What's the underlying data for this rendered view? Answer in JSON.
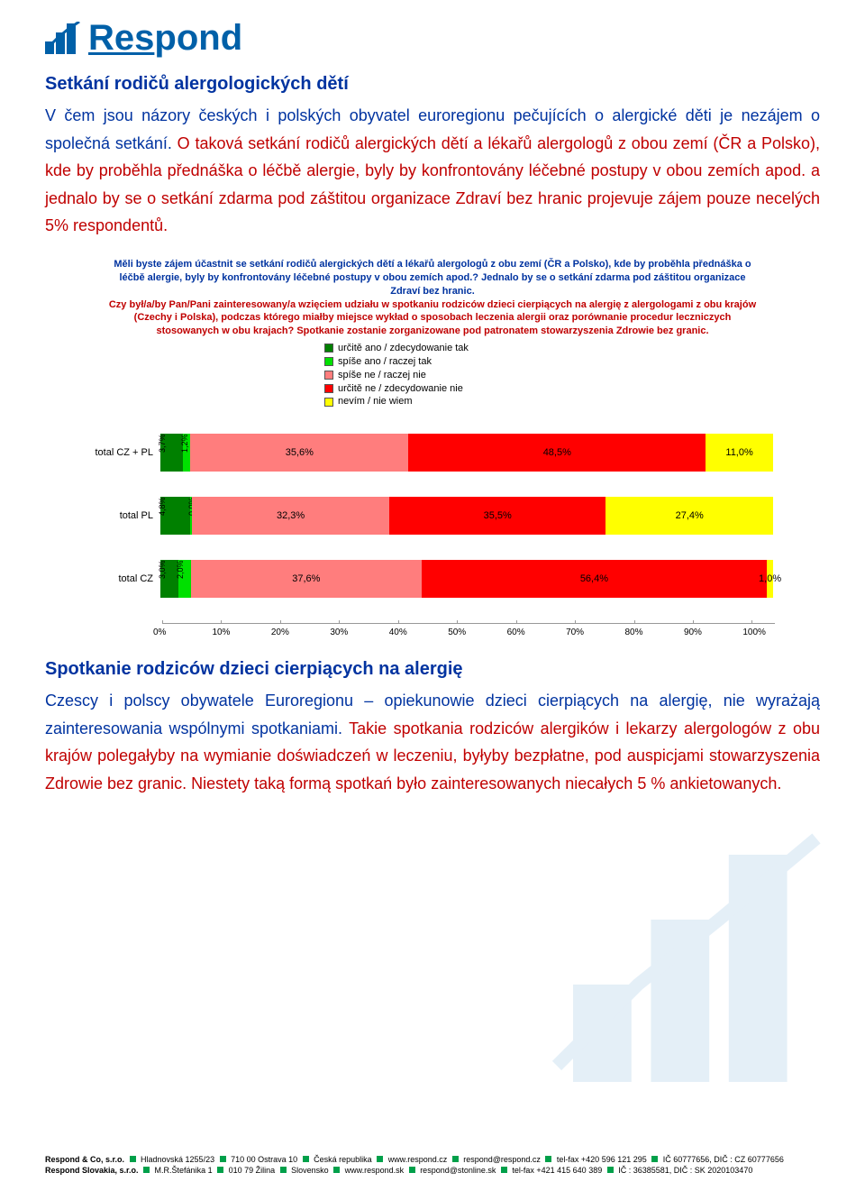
{
  "logo": {
    "text": "Respond",
    "icon_name": "logo-bar-icon",
    "brand_color": "#0060a8"
  },
  "section_cz": {
    "title": "Setkání rodičů alergologických dětí",
    "paragraph_blue": "V čem jsou názory českých i polských obyvatel euroregionu pečujících o alergické děti je nezájem o společná setkání. ",
    "paragraph_red": "O taková setkání rodičů alergických dětí a lékařů alergologů z obou zemí (ČR a Polsko), kde by proběhla přednáška o léčbě alergie, byly by konfrontovány léčebné postupy v obou zemích apod. a jednalo by se o setkání zdarma pod záštitou organizace Zdraví bez hranic projevuje zájem pouze necelých 5% respondentů."
  },
  "chart": {
    "title_blue": "Měli byste zájem účastnit se setkání rodičů alergických dětí a lékařů alergologů z obu zemí (ČR a Polsko), kde by proběhla přednáška o léčbě alergie, byly by konfrontovány léčebné postupy v obou zemích apod.? Jednalo by se o setkání zdarma pod záštitou organizace Zdraví bez hranic.",
    "title_red": "Czy był/a/by Pan/Pani zainteresowany/a wzięciem udziału w spotkaniu rodziców dzieci cierpiących na alergię z alergologami z obu krajów (Czechy i Polska), podczas którego miałby miejsce wykład o sposobach leczenia alergii oraz porównanie procedur leczniczych stosowanych w obu krajach? Spotkanie zostanie zorganizowane pod patronatem stowarzyszenia Zdrowie bez granic.",
    "legend": [
      {
        "color": "#008000",
        "label": "určitě ano / zdecydowanie tak"
      },
      {
        "color": "#00e000",
        "label": "spíše ano / raczej tak"
      },
      {
        "color": "#ff7d7d",
        "label": "spíše ne / raczej nie"
      },
      {
        "color": "#ff0000",
        "label": "určitě ne / zdecydowanie nie"
      },
      {
        "color": "#ffff00",
        "label": "nevím / nie wiem"
      }
    ],
    "rows": [
      {
        "label": "total CZ + PL",
        "segments": [
          {
            "pct": 3.7,
            "label": "3,7%",
            "color": "#008000",
            "text_mode": "rot"
          },
          {
            "pct": 1.2,
            "label": "1,2%",
            "color": "#00e000",
            "text_mode": "rot"
          },
          {
            "pct": 35.6,
            "label": "35,6%",
            "color": "#ff7d7d",
            "text_mode": "in"
          },
          {
            "pct": 48.5,
            "label": "48,5%",
            "color": "#ff0000",
            "text_mode": "in"
          },
          {
            "pct": 11.0,
            "label": "11,0%",
            "color": "#ffff00",
            "text_mode": "in"
          }
        ]
      },
      {
        "label": "total PL",
        "segments": [
          {
            "pct": 4.8,
            "label": "4,8%",
            "color": "#008000",
            "text_mode": "rot"
          },
          {
            "pct": 0.0,
            "label": "0,0%",
            "color": "#00e000",
            "text_mode": "rot"
          },
          {
            "pct": 32.3,
            "label": "32,3%",
            "color": "#ff7d7d",
            "text_mode": "in"
          },
          {
            "pct": 35.5,
            "label": "35,5%",
            "color": "#ff0000",
            "text_mode": "in"
          },
          {
            "pct": 27.4,
            "label": "27,4%",
            "color": "#ffff00",
            "text_mode": "in"
          }
        ]
      },
      {
        "label": "total CZ",
        "segments": [
          {
            "pct": 3.0,
            "label": "3,0%",
            "color": "#008000",
            "text_mode": "rot"
          },
          {
            "pct": 2.0,
            "label": "2,0%",
            "color": "#00e000",
            "text_mode": "rot"
          },
          {
            "pct": 37.6,
            "label": "37,6%",
            "color": "#ff7d7d",
            "text_mode": "in"
          },
          {
            "pct": 56.4,
            "label": "56,4%",
            "color": "#ff0000",
            "text_mode": "in"
          },
          {
            "pct": 1.0,
            "label": "1,0%",
            "color": "#ffff00",
            "text_mode": "in"
          }
        ]
      }
    ],
    "x_ticks": [
      "0%",
      "10%",
      "20%",
      "30%",
      "40%",
      "50%",
      "60%",
      "70%",
      "80%",
      "90%",
      "100%"
    ]
  },
  "section_pl": {
    "title": "Spotkanie rodziców dzieci cierpiących na alergię",
    "paragraph_blue": "Czescy i polscy obywatele Euroregionu – opiekunowie dzieci cierpiących na alergię, nie wyrażają zainteresowania wspólnymi spotkaniami. ",
    "paragraph_red": "Takie spotkania rodziców alergików i lekarzy alergologów z obu krajów polegałyby na wymianie doświadczeń w leczeniu, byłyby bezpłatne, pod auspicjami stowarzyszenia Zdrowie bez granic. Niestety taką formą spotkań było zainteresowanych niecałych 5 % ankietowanych."
  },
  "footer": {
    "line1_company": "Respond & Co, s.r.o.",
    "line1_parts": [
      "Hladnovská 1255/23",
      "710 00  Ostrava 10",
      "Česká republika",
      "www.respond.cz",
      "respond@respond.cz",
      "tel-fax +420 596 121 295",
      "IČ 60777656, DIČ : CZ 60777656"
    ],
    "line2_company": "Respond Slovakia, s.r.o.",
    "line2_parts": [
      "M.R.Štefánika 1",
      "010 79  Žilina",
      "Slovensko",
      "www.respond.sk",
      "respond@stonline.sk",
      "tel-fax +421 415 640 389",
      "IČ : 36385581, DIČ : SK 2020103470"
    ]
  }
}
